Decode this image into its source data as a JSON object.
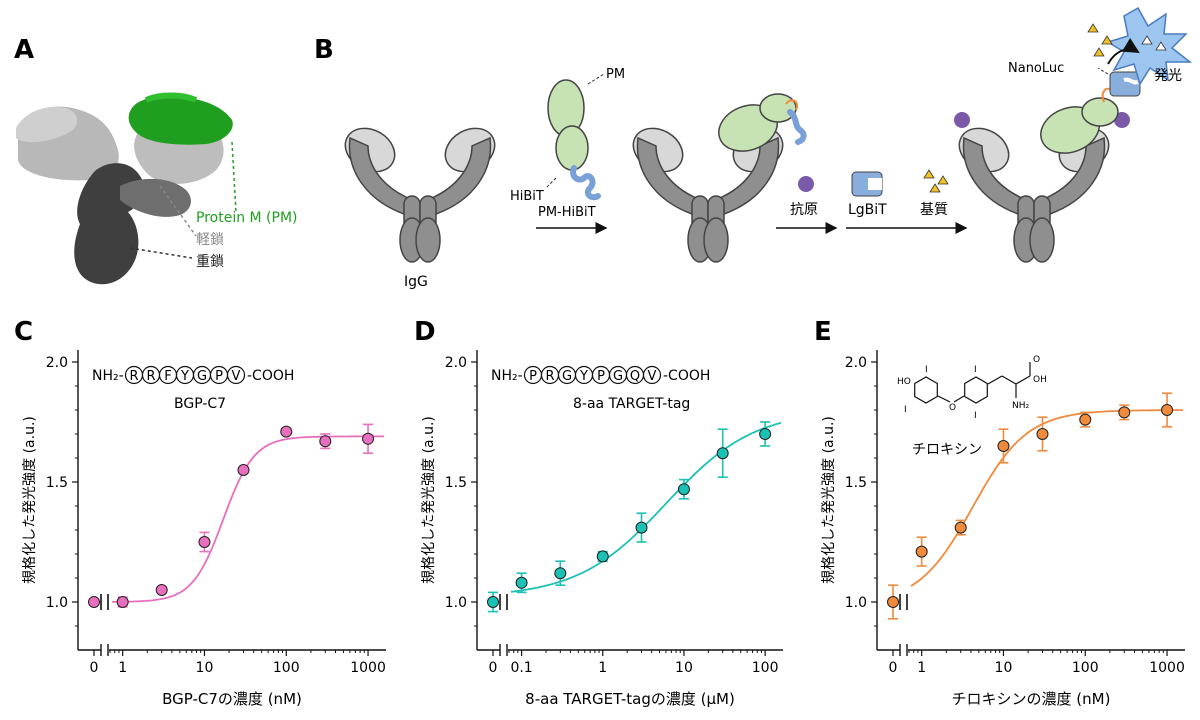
{
  "panelA": {
    "letter": "A",
    "labels": {
      "pm": "Protein M (PM)",
      "light": "軽鎖",
      "heavy": "重鎖"
    },
    "colors": {
      "pm": "#1f9e1f",
      "light": "#8a8a8a",
      "heavy": "#333333"
    }
  },
  "panelB": {
    "letter": "B",
    "igg": "IgG",
    "pm": "PM",
    "hibit": "HiBiT",
    "step1": "PM-HiBiT",
    "antigen": "抗原",
    "lgbit": "LgBiT",
    "substrate": "基質",
    "nanoluc": "NanoLuc",
    "emission": "発光"
  },
  "chart_data": [
    {
      "letter": "C",
      "type": "scatter",
      "x_scale": "log-with-zero-break",
      "peptide_prefix": "NH₂-",
      "peptide": [
        "R",
        "R",
        "F",
        "Y",
        "G",
        "P",
        "V"
      ],
      "peptide_suffix": "-COOH",
      "name": "BGP-C7",
      "color": "#e86fbd",
      "xlabel": "BGP-C7の濃度 (nM)",
      "ylabel": "規格化した発光強度 (a.u.)",
      "ylim": [
        0.8,
        2.05
      ],
      "yticks": [
        1.0,
        1.5,
        2.0
      ],
      "ytick_labels": [
        "1.0",
        "1.5",
        "2.0"
      ],
      "xlim_log": [
        0.7,
        1400
      ],
      "xticks": [
        0,
        1,
        10,
        100,
        1000
      ],
      "xtick_labels": [
        "0",
        "1",
        "10",
        "100",
        "1000"
      ],
      "points": [
        {
          "x": 0,
          "y": 1.0,
          "err": 0.01
        },
        {
          "x": 1,
          "y": 1.0,
          "err": 0.02
        },
        {
          "x": 3,
          "y": 1.05,
          "err": 0.01
        },
        {
          "x": 10,
          "y": 1.25,
          "err": 0.04
        },
        {
          "x": 30,
          "y": 1.55,
          "err": 0.01
        },
        {
          "x": 100,
          "y": 1.71,
          "err": 0.01
        },
        {
          "x": 300,
          "y": 1.67,
          "err": 0.03
        },
        {
          "x": 1000,
          "y": 1.68,
          "err": 0.06
        }
      ],
      "fit": {
        "bottom": 1.0,
        "top": 1.69,
        "ec50": 17,
        "hill": 2.3
      }
    },
    {
      "letter": "D",
      "type": "scatter",
      "x_scale": "log-with-zero-break",
      "peptide_prefix": "NH₂-",
      "peptide": [
        "P",
        "R",
        "G",
        "Y",
        "P",
        "G",
        "Q",
        "V"
      ],
      "peptide_suffix": "-COOH",
      "name": "8-aa TARGET-tag",
      "color": "#1cc1b5",
      "xlabel": "8-aa TARGET-tagの濃度 (μM)",
      "ylabel": "規格化した発光強度 (a.u.)",
      "ylim": [
        0.8,
        2.05
      ],
      "yticks": [
        1.0,
        1.5,
        2.0
      ],
      "ytick_labels": [
        "1.0",
        "1.5",
        "2.0"
      ],
      "xlim_log": [
        0.07,
        140
      ],
      "xticks": [
        0,
        0.1,
        1,
        10,
        100
      ],
      "xtick_labels": [
        "0",
        "0.1",
        "1",
        "10",
        "100"
      ],
      "points": [
        {
          "x": 0,
          "y": 1.0,
          "err": 0.04
        },
        {
          "x": 0.1,
          "y": 1.08,
          "err": 0.04
        },
        {
          "x": 0.3,
          "y": 1.12,
          "err": 0.05
        },
        {
          "x": 1,
          "y": 1.19,
          "err": 0.02
        },
        {
          "x": 3,
          "y": 1.31,
          "err": 0.06
        },
        {
          "x": 10,
          "y": 1.47,
          "err": 0.04
        },
        {
          "x": 30,
          "y": 1.62,
          "err": 0.1
        },
        {
          "x": 100,
          "y": 1.7,
          "err": 0.05
        }
      ],
      "fit": {
        "bottom": 1.02,
        "top": 1.8,
        "ec50": 6,
        "hill": 0.8
      }
    },
    {
      "letter": "E",
      "type": "scatter",
      "x_scale": "log-with-zero-break",
      "compound": "チロキシン",
      "name": "チロキシン",
      "color": "#f08a3c",
      "xlabel": "チロキシンの濃度 (nM)",
      "ylabel": "規格化した発光強度 (a.u.)",
      "ylim": [
        0.8,
        2.05
      ],
      "yticks": [
        1.0,
        1.5,
        2.0
      ],
      "ytick_labels": [
        "1.0",
        "1.5",
        "2.0"
      ],
      "xlim_log": [
        0.7,
        1400
      ],
      "xticks": [
        0,
        1,
        10,
        100,
        1000
      ],
      "xtick_labels": [
        "0",
        "1",
        "10",
        "100",
        "1000"
      ],
      "points": [
        {
          "x": 0,
          "y": 1.0,
          "err": 0.07
        },
        {
          "x": 1,
          "y": 1.21,
          "err": 0.06
        },
        {
          "x": 3,
          "y": 1.31,
          "err": 0.03
        },
        {
          "x": 10,
          "y": 1.65,
          "err": 0.07
        },
        {
          "x": 30,
          "y": 1.7,
          "err": 0.07
        },
        {
          "x": 100,
          "y": 1.76,
          "err": 0.03
        },
        {
          "x": 300,
          "y": 1.79,
          "err": 0.03
        },
        {
          "x": 1000,
          "y": 1.8,
          "err": 0.07
        }
      ],
      "fit": {
        "bottom": 0.99,
        "top": 1.8,
        "ec50": 4.2,
        "hill": 1.3
      },
      "structure_labels": {
        "ho": "HO",
        "i": "I",
        "o": "O",
        "oh": "OH",
        "nh2": "NH₂"
      }
    }
  ]
}
